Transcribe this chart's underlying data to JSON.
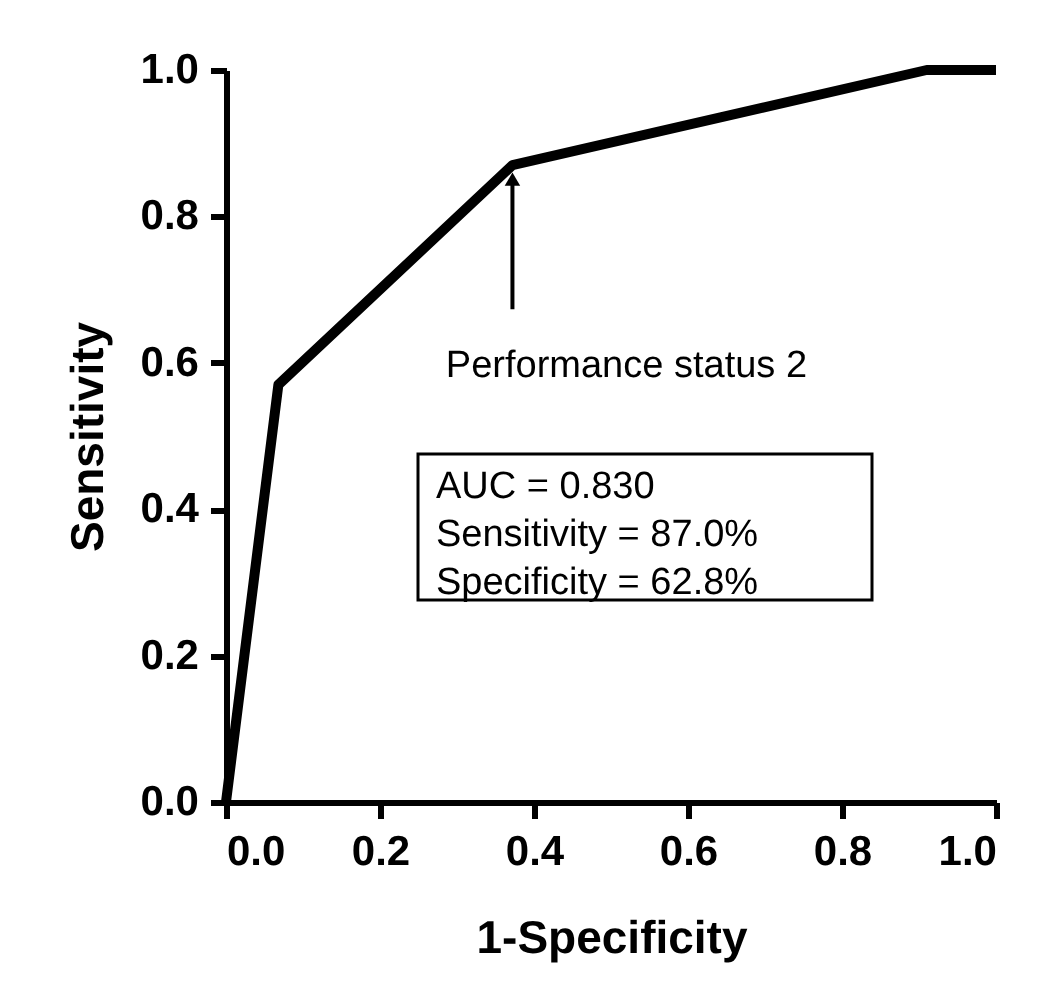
{
  "chart_data": {
    "type": "line",
    "xlabel": "1-Specificity",
    "ylabel": "Sensitivity",
    "x": [
      0,
      0.068,
      0.372,
      0.91,
      1.0
    ],
    "series": [
      {
        "color": "#000000",
        "values": [
          0,
          0.57,
          0.87,
          1.0,
          1.0
        ]
      }
    ],
    "xlim": [
      0,
      1
    ],
    "ylim": [
      0,
      1
    ],
    "xticks": [
      {
        "value": 0,
        "label": "0.0"
      },
      {
        "value": 0.2,
        "label": "0.2"
      },
      {
        "value": 0.4,
        "label": "0.4"
      },
      {
        "value": 0.6,
        "label": "0.6"
      },
      {
        "value": 0.8,
        "label": "0.8"
      },
      {
        "value": 1,
        "label": "1.0"
      }
    ],
    "yticks": [
      {
        "value": 0,
        "label": "0.0"
      },
      {
        "value": 0.2,
        "label": "0.2"
      },
      {
        "value": 0.4,
        "label": "0.4"
      },
      {
        "value": 0.6,
        "label": "0.6"
      },
      {
        "value": 0.8,
        "label": "0.8"
      },
      {
        "value": 1,
        "label": "1.0"
      }
    ],
    "grid": false,
    "marker": "none",
    "line_style": "solid",
    "annotations": [
      {
        "text": "Performance status 2",
        "x": 0.372,
        "y": 0.87
      },
      "AUC = 0.830",
      "Sensitivity = 87.0%",
      "Specificity = 62.8%"
    ]
  }
}
